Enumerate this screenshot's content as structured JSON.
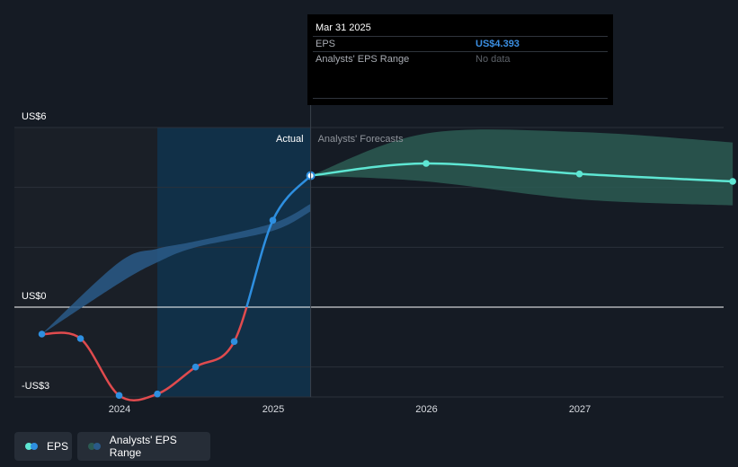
{
  "chart_data": {
    "type": "line",
    "x_ticks": [
      "2024",
      "2025",
      "2026",
      "2027"
    ],
    "y_ticks": [
      "US$6",
      "US$0",
      "-US$3"
    ],
    "ylim": [
      -3,
      6
    ],
    "section_labels": {
      "actual": "Actual",
      "forecast": "Analysts' Forecasts"
    },
    "series": [
      {
        "name": "EPS",
        "segment": "actual",
        "points": [
          [
            "2023-06-30",
            -0.9
          ],
          [
            "2023-09-30",
            -1.05
          ],
          [
            "2023-12-31",
            -2.95
          ],
          [
            "2024-03-31",
            -2.9
          ],
          [
            "2024-06-30",
            -2.0
          ],
          [
            "2024-09-30",
            -1.15
          ],
          [
            "2024-12-31",
            2.9
          ],
          [
            "2025-03-31",
            4.393
          ]
        ]
      },
      {
        "name": "EPS",
        "segment": "forecast",
        "points": [
          [
            "2025-03-31",
            4.393
          ],
          [
            "2025-12-31",
            4.8
          ],
          [
            "2026-12-31",
            4.45
          ],
          [
            "2027-12-31",
            4.2
          ]
        ]
      }
    ],
    "range_actual": {
      "upper": [
        [
          "2023-06-30",
          -0.9
        ],
        [
          "2023-12-31",
          1.5
        ],
        [
          "2024-03-31",
          1.95
        ],
        [
          "2024-06-30",
          2.2
        ],
        [
          "2024-12-31",
          2.8
        ],
        [
          "2025-03-31",
          3.45
        ]
      ],
      "lower": [
        [
          "2023-06-30",
          -0.9
        ],
        [
          "2023-12-31",
          0.8
        ],
        [
          "2024-03-31",
          1.5
        ],
        [
          "2024-06-30",
          2.0
        ],
        [
          "2024-12-31",
          2.55
        ],
        [
          "2025-03-31",
          3.2
        ]
      ]
    },
    "range_forecast": {
      "upper": [
        [
          "2025-03-31",
          4.393
        ],
        [
          "2025-12-31",
          5.8
        ],
        [
          "2026-12-31",
          5.85
        ],
        [
          "2027-12-31",
          5.5
        ]
      ],
      "lower": [
        [
          "2025-03-31",
          4.393
        ],
        [
          "2025-12-31",
          4.2
        ],
        [
          "2026-12-31",
          3.6
        ],
        [
          "2027-12-31",
          3.4
        ]
      ]
    },
    "legend": [
      "EPS",
      "Analysts' EPS Range"
    ],
    "colors": {
      "eps_positive": "#2e8fe0",
      "eps_negative": "#e04b4e",
      "eps_forecast": "#5ee6d3",
      "range_actual": "#2a5a88",
      "range_forecast": "#2b5a52",
      "past_highlight": "#11324d"
    }
  },
  "tooltip": {
    "date": "Mar 31 2025",
    "rows": [
      {
        "label": "EPS",
        "value": "US$4.393",
        "color": "#3b8fe3"
      },
      {
        "label": "Analysts' EPS Range",
        "value": "No data",
        "color": "#5d6269"
      }
    ]
  },
  "legend": {
    "eps_label": "EPS",
    "range_label": "Analysts' EPS Range"
  }
}
